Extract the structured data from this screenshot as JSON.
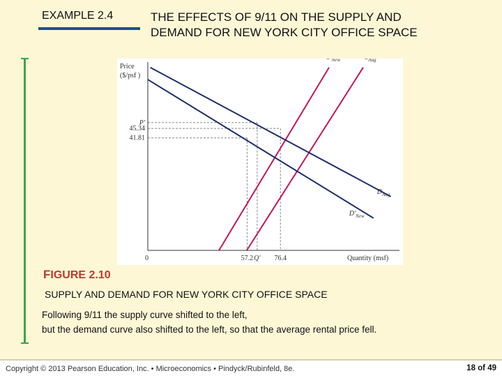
{
  "header": {
    "example": "EXAMPLE 2.4",
    "title_line1": "THE EFFECTS OF 9/11 ON THE SUPPLY AND",
    "title_line2": "DEMAND FOR NEW YORK CITY OFFICE SPACE"
  },
  "figure": {
    "label_first": "F",
    "label_rest": "IGURE 2.10",
    "caption": "SUPPLY AND DEMAND FOR NEW YORK CITY OFFICE SPACE",
    "desc_line1": "Following 9/11 the supply curve shifted to the left,",
    "desc_line2": "but the demand curve also shifted to the left, so that the average rental price fell."
  },
  "footer": {
    "copyright": "Copyright © 2013 Pearson Education, Inc. • Microeconomics • Pindyck/Rubinfeld, 8e.",
    "page": "18 of 49"
  },
  "colors": {
    "supply": "#c2185b",
    "demand": "#1c2f6e",
    "dashed": "#888888",
    "accent_rule": "#1f4f8f",
    "side_rule": "#3aa648"
  },
  "chart_data": {
    "type": "line",
    "ylabel_line1": "Price",
    "ylabel_line2": "($/psf )",
    "xlabel": "Quantity (msf)",
    "origin_label": "0",
    "y_ticks": [
      {
        "label": "P'",
        "value": 47.5,
        "italic": true
      },
      {
        "label": "45.34",
        "value": 45.34,
        "italic": false
      },
      {
        "label": "41.81",
        "value": 41.81,
        "italic": false
      }
    ],
    "x_ticks": [
      {
        "label": "57.2",
        "value": 57.2,
        "italic": false
      },
      {
        "label": "Q'",
        "value": 63.0,
        "italic": true
      },
      {
        "label": "76.4",
        "value": 76.4,
        "italic": false
      }
    ],
    "xlim": [
      0,
      145
    ],
    "ylim": [
      0,
      70
    ],
    "series": [
      {
        "name": "S'New",
        "base": "S'",
        "sub": "New",
        "kind": "supply",
        "x": [
          41,
          110
        ],
        "y": [
          0,
          74
        ],
        "label_x": 103,
        "label_y": 71
      },
      {
        "name": "SAug",
        "base": "S",
        "sub": "Aug",
        "kind": "supply",
        "x": [
          57,
          130
        ],
        "y": [
          0,
          74
        ],
        "label_x": 125,
        "label_y": 71
      },
      {
        "name": "DAug",
        "base": "D",
        "sub": "Aug",
        "kind": "demand",
        "x": [
          0,
          140
        ],
        "y": [
          68.5,
          20
        ],
        "label_x": 132,
        "label_y": 21
      },
      {
        "name": "D'New",
        "base": "D'",
        "sub": "New",
        "kind": "demand",
        "x": [
          0,
          130
        ],
        "y": [
          63.5,
          12
        ],
        "label_x": 116,
        "label_y": 13
      }
    ],
    "equilibria": [
      {
        "x": 63.0,
        "y": 47.5
      },
      {
        "x": 76.4,
        "y": 45.34
      },
      {
        "x": 57.2,
        "y": 41.81
      }
    ]
  }
}
